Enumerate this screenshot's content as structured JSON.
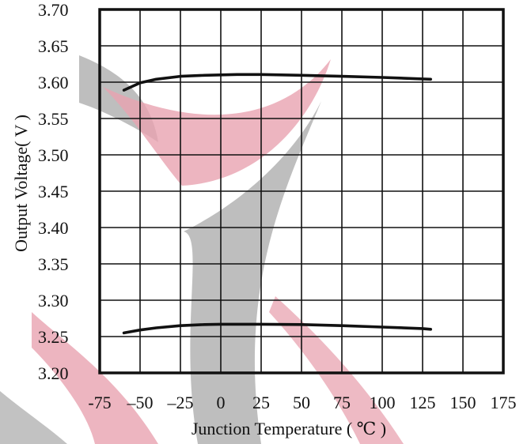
{
  "chart_data": {
    "type": "line",
    "xlabel": "Junction Temperature ( ℃ )",
    "ylabel": "Output Voltage( V )",
    "xlim": [
      -75,
      175
    ],
    "ylim": [
      3.2,
      3.7
    ],
    "x_ticks": [
      "-75",
      "–50",
      "–25",
      "0",
      "25",
      "50",
      "75",
      "100",
      "125",
      "150",
      "175"
    ],
    "y_ticks": [
      "3.20",
      "3.25",
      "3.30",
      "3.35",
      "3.40",
      "3.45",
      "3.50",
      "3.55",
      "3.60",
      "3.65",
      "3.70"
    ],
    "grid": true,
    "legend": "none",
    "series": [
      {
        "x": [
          -60,
          -50,
          -40,
          -25,
          -10,
          0,
          10,
          25,
          50,
          75,
          100,
          125,
          130
        ],
        "y": [
          3.589,
          3.599,
          3.604,
          3.608,
          3.6095,
          3.61,
          3.6105,
          3.6105,
          3.6095,
          3.608,
          3.6065,
          3.6045,
          3.604
        ]
      },
      {
        "x": [
          -60,
          -50,
          -40,
          -25,
          -10,
          0,
          10,
          25,
          50,
          75,
          100,
          125,
          130
        ],
        "y": [
          3.255,
          3.259,
          3.262,
          3.265,
          3.2665,
          3.267,
          3.267,
          3.267,
          3.2665,
          3.265,
          3.263,
          3.261,
          3.26
        ]
      }
    ],
    "colors": {
      "line": "#111111",
      "grid": "#111111",
      "watermark_gray": "#b3b3b3",
      "watermark_pink": "#e8a3b0"
    }
  }
}
